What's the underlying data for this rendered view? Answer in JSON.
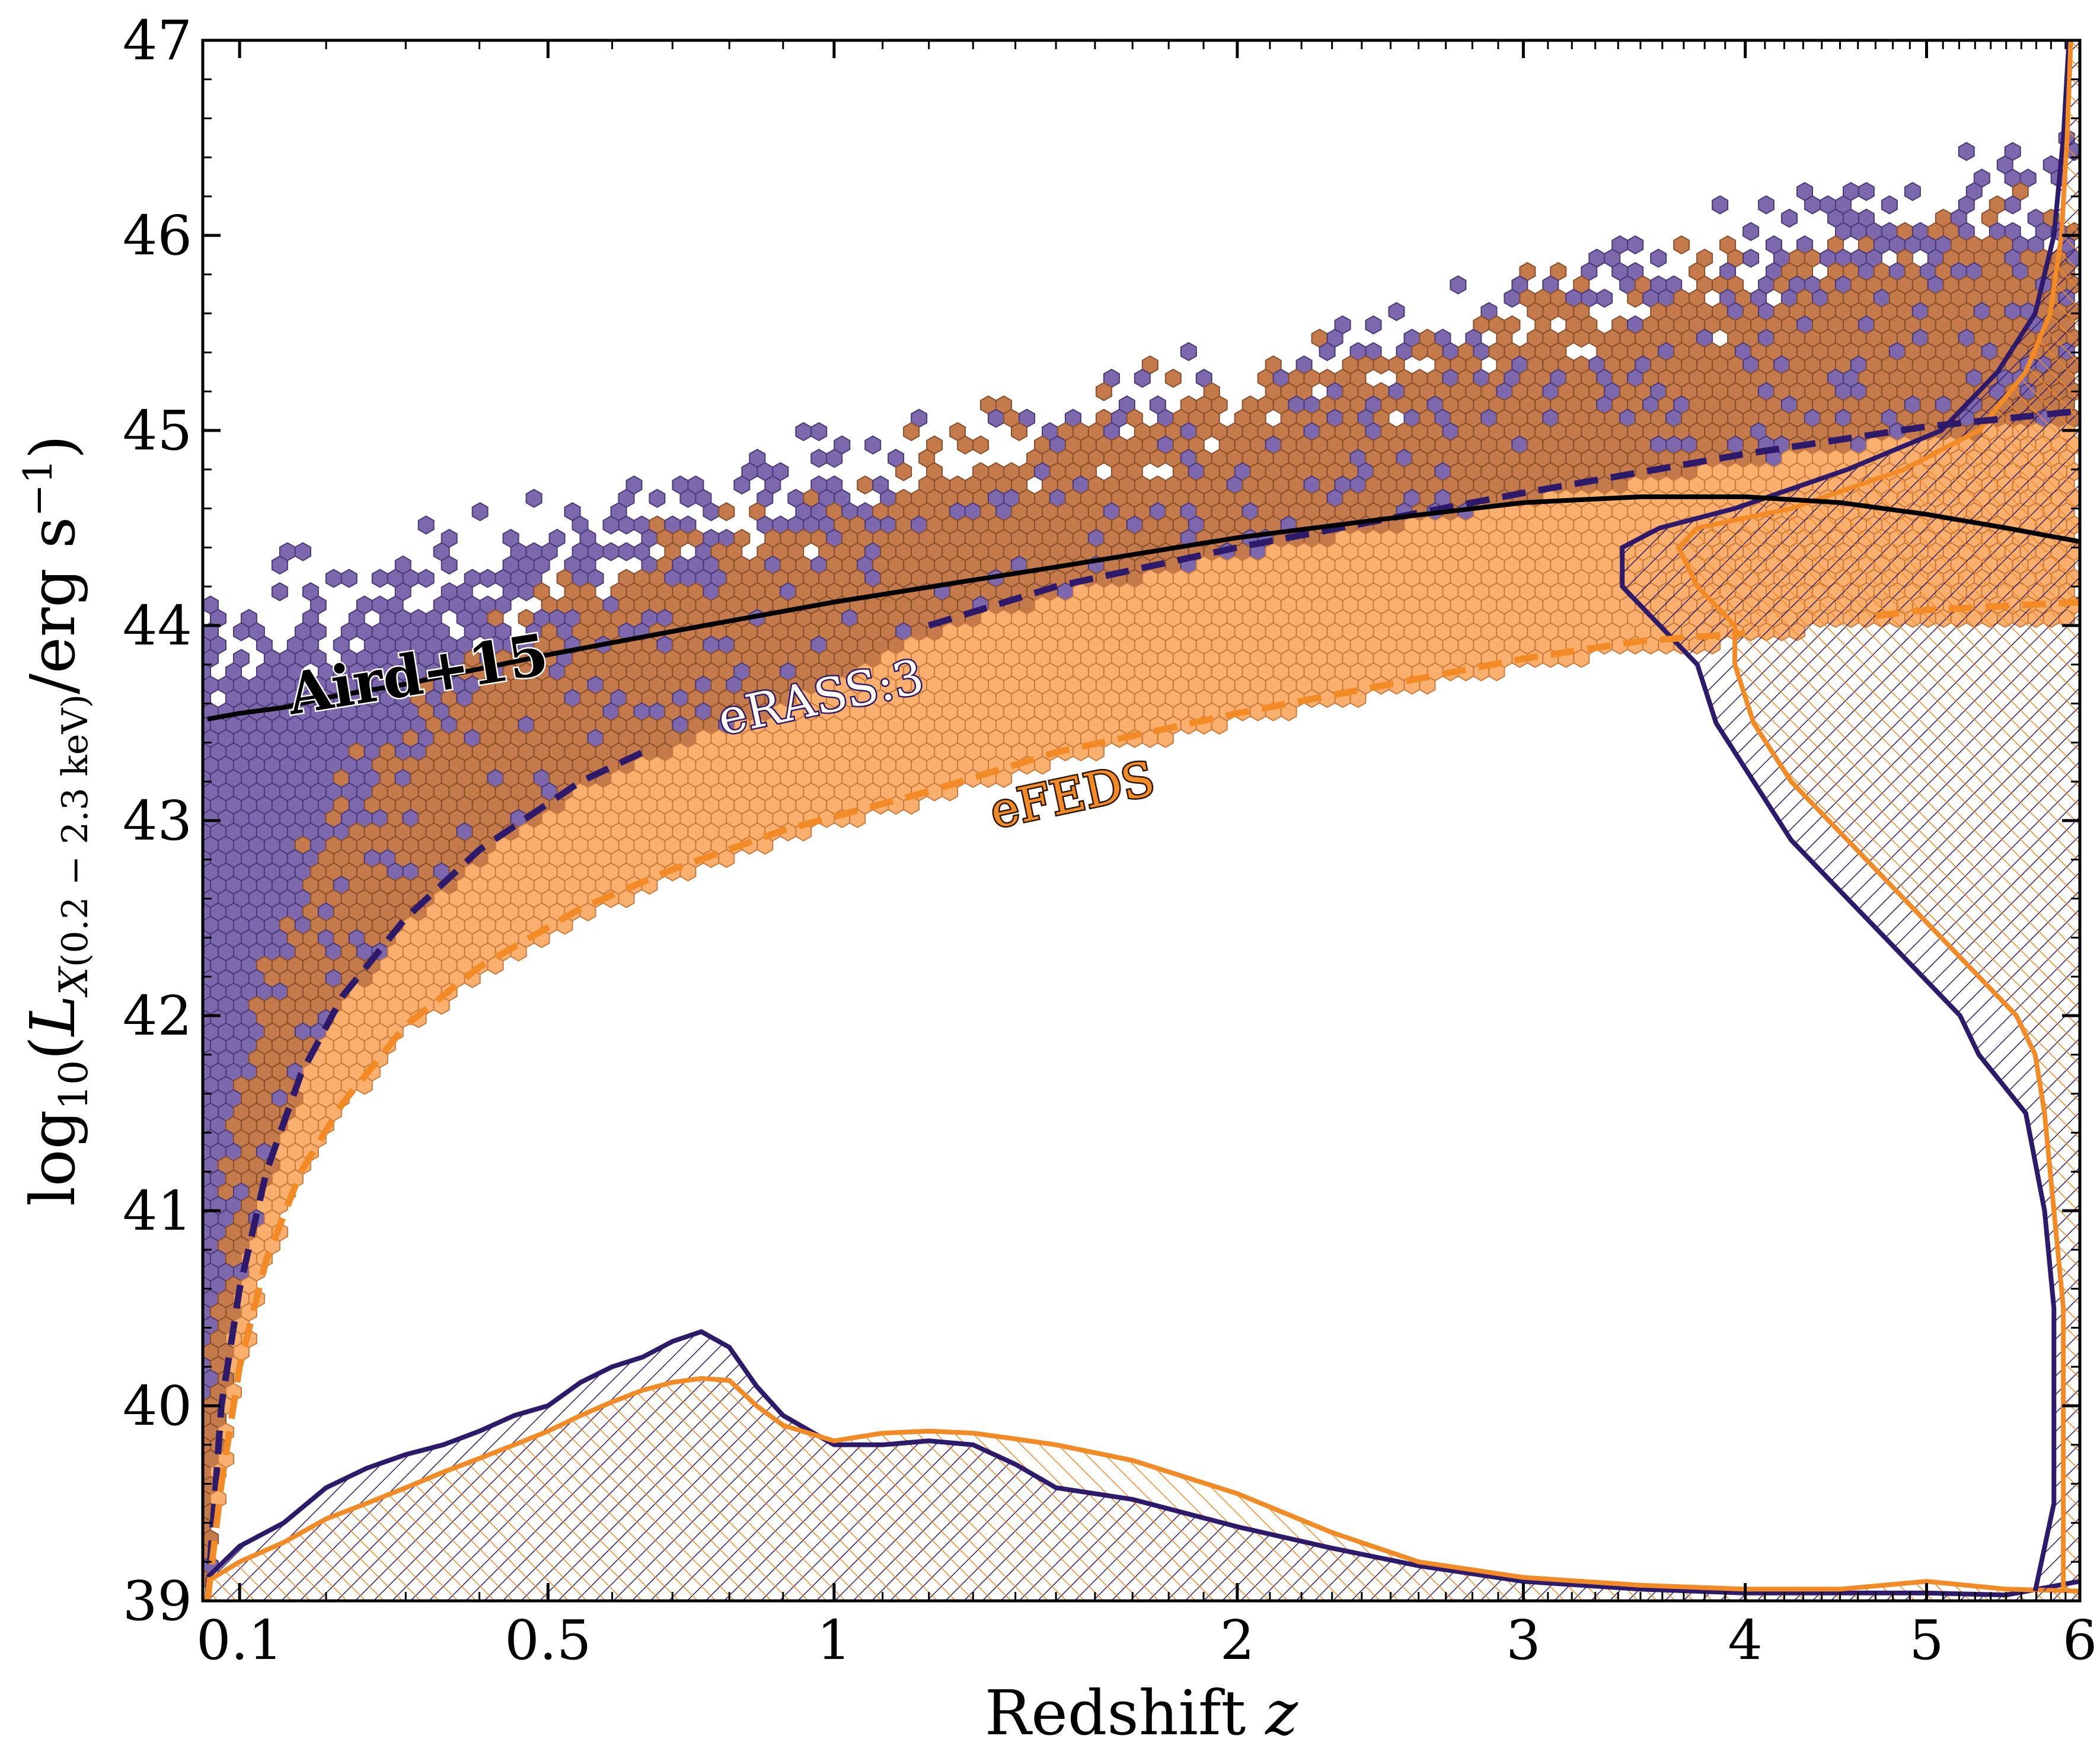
{
  "colors": {
    "erass_line": "#2e1a6b",
    "efeds_line": "#f28a25",
    "aird_line": "#000000",
    "hex_erass": "#7d68ad",
    "hex_overlap": "#c47a4b",
    "hex_efeds": "#f9b06f"
  },
  "chart_data": {
    "type": "scatter",
    "subtype": "hexbin density with marginal KDE histograms",
    "title": "",
    "xlabel": "Redshift z",
    "ylabel": "log10(L_X(0.2 - 2.3 keV)/erg s^-1)",
    "xlabel_parts": {
      "main": "Redshift ",
      "var": "z"
    },
    "ylabel_parts": {
      "prefix": "log",
      "log_base": "10",
      "L": "L",
      "sub_var": "X",
      "sub_band": "(0.2 − 2.3 keV)",
      "unit": "/erg s",
      "exp": "−1"
    },
    "xscale": "log(1+z)",
    "xlim": [
      0.06,
      6
    ],
    "ylim": [
      39,
      47
    ],
    "grid": false,
    "x_ticks": [
      {
        "value": 0.1,
        "label": "0.1"
      },
      {
        "value": 0.5,
        "label": "0.5"
      },
      {
        "value": 1,
        "label": "1"
      },
      {
        "value": 2,
        "label": "2"
      },
      {
        "value": 3,
        "label": "3"
      },
      {
        "value": 4,
        "label": "4"
      },
      {
        "value": 5,
        "label": "5"
      },
      {
        "value": 6,
        "label": "6"
      }
    ],
    "y_ticks": [
      {
        "value": 39,
        "label": "39"
      },
      {
        "value": 40,
        "label": "40"
      },
      {
        "value": 41,
        "label": "41"
      },
      {
        "value": 42,
        "label": "42"
      },
      {
        "value": 43,
        "label": "43"
      },
      {
        "value": 44,
        "label": "44"
      },
      {
        "value": 45,
        "label": "45"
      },
      {
        "value": 46,
        "label": "46"
      },
      {
        "value": 47,
        "label": "47"
      }
    ],
    "series": [
      {
        "name": "eRASS:3",
        "kind": "flux-limit dashed curve",
        "x": [
          0.065,
          0.08,
          0.1,
          0.13,
          0.17,
          0.22,
          0.3,
          0.4,
          0.55,
          0.65
        ],
        "y": [
          39.0,
          40.0,
          40.6,
          41.2,
          41.7,
          42.1,
          42.5,
          42.85,
          43.2,
          43.35
        ],
        "x2": [
          1.2,
          1.5,
          2.0,
          2.5,
          3.0,
          4.0,
          5.0,
          6.0
        ],
        "y2": [
          44.0,
          44.2,
          44.4,
          44.55,
          44.68,
          44.88,
          45.02,
          45.1
        ]
      },
      {
        "name": "eFEDS",
        "kind": "flux-limit dashed curve",
        "x": [
          0.065,
          0.08,
          0.1,
          0.13,
          0.17,
          0.22,
          0.3,
          0.4,
          0.55,
          0.7,
          0.9,
          1.2,
          1.5,
          2.0,
          2.5,
          3.0,
          3.5,
          4.0
        ],
        "y": [
          39.0,
          39.6,
          40.2,
          40.75,
          41.2,
          41.55,
          41.95,
          42.25,
          42.55,
          42.75,
          42.95,
          43.15,
          43.35,
          43.55,
          43.7,
          43.83,
          43.92,
          43.96
        ],
        "x2": [
          4.7,
          5.0,
          5.5,
          6.0
        ],
        "y2": [
          44.05,
          44.08,
          44.1,
          44.12
        ]
      },
      {
        "name": "Aird+15",
        "kind": "solid curve",
        "x": [
          0.065,
          0.1,
          0.15,
          0.2,
          0.3,
          0.5,
          0.7,
          1.0,
          1.5,
          2.0,
          2.5,
          3.0,
          3.5,
          4.0,
          4.5,
          5.0,
          5.5,
          6.0
        ],
        "y": [
          43.52,
          43.55,
          43.58,
          43.63,
          43.7,
          43.85,
          43.97,
          44.12,
          44.3,
          44.45,
          44.55,
          44.63,
          44.66,
          44.66,
          44.63,
          44.57,
          44.5,
          44.43
        ]
      }
    ],
    "curve_labels": [
      {
        "series": "Aird+15",
        "text": "Aird+15",
        "x": 0.32,
        "y": 43.65,
        "rotation_deg": -9
      },
      {
        "series": "eRASS:3",
        "text": "eRASS:3",
        "x": 0.98,
        "y": 43.55,
        "rotation_deg": -12
      },
      {
        "series": "eFEDS",
        "text": "eFEDS",
        "x": 1.55,
        "y": 43.05,
        "rotation_deg": -12
      }
    ],
    "redshift_kde": {
      "description": "marginal redshift distribution along bottom (relative height in log L units above 39)",
      "x": [
        0.065,
        0.1,
        0.15,
        0.2,
        0.25,
        0.3,
        0.35,
        0.4,
        0.45,
        0.5,
        0.55,
        0.6,
        0.65,
        0.7,
        0.75,
        0.8,
        0.85,
        0.9,
        1.0,
        1.1,
        1.2,
        1.3,
        1.4,
        1.5,
        1.7,
        2.0,
        2.3,
        2.6,
        3.0,
        3.5,
        4.0,
        4.5,
        5.0,
        5.5,
        6.0
      ],
      "erass": [
        0.12,
        0.28,
        0.4,
        0.58,
        0.68,
        0.75,
        0.8,
        0.87,
        0.95,
        1.0,
        1.12,
        1.2,
        1.25,
        1.33,
        1.38,
        1.3,
        1.1,
        0.95,
        0.8,
        0.8,
        0.82,
        0.8,
        0.7,
        0.58,
        0.52,
        0.38,
        0.27,
        0.18,
        0.1,
        0.06,
        0.04,
        0.04,
        0.04,
        0.03,
        0.1
      ],
      "efeds": [
        0.1,
        0.2,
        0.3,
        0.42,
        0.5,
        0.58,
        0.66,
        0.73,
        0.8,
        0.87,
        0.95,
        1.02,
        1.08,
        1.12,
        1.14,
        1.13,
        1.0,
        0.9,
        0.82,
        0.86,
        0.87,
        0.86,
        0.83,
        0.8,
        0.72,
        0.55,
        0.35,
        0.2,
        0.12,
        0.08,
        0.06,
        0.06,
        0.1,
        0.06,
        0.05
      ]
    },
    "luminosity_kde": {
      "description": "marginal luminosity distribution along right edge (relative width in redshift-axis fraction from right edge)",
      "y": [
        39.05,
        39.5,
        40.0,
        40.5,
        41.0,
        41.5,
        41.8,
        42.0,
        42.3,
        42.6,
        42.9,
        43.2,
        43.5,
        43.8,
        44.0,
        44.2,
        44.4,
        44.5,
        44.6,
        44.8,
        45.0,
        45.3,
        45.6,
        46.0,
        46.5,
        47.0
      ],
      "erass": [
        0.02,
        0.01,
        0.01,
        0.01,
        0.015,
        0.025,
        0.05,
        0.06,
        0.09,
        0.12,
        0.15,
        0.17,
        0.19,
        0.2,
        0.22,
        0.24,
        0.24,
        0.22,
        0.18,
        0.12,
        0.07,
        0.04,
        0.02,
        0.01,
        0.005,
        0.002
      ],
      "efeds": [
        0.005,
        0.005,
        0.005,
        0.005,
        0.01,
        0.015,
        0.02,
        0.03,
        0.06,
        0.09,
        0.12,
        0.15,
        0.17,
        0.18,
        0.18,
        0.2,
        0.21,
        0.2,
        0.15,
        0.09,
        0.05,
        0.025,
        0.012,
        0.006,
        0.003,
        0.001
      ]
    }
  }
}
